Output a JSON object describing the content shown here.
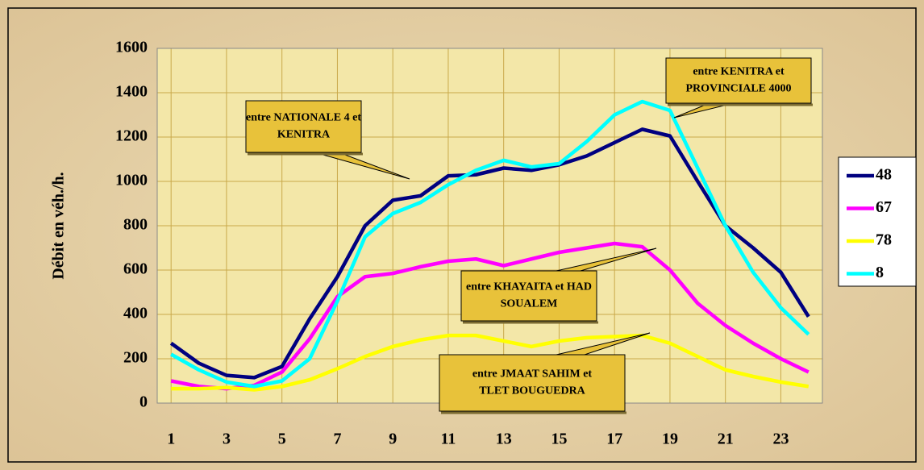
{
  "chart_data": {
    "type": "line",
    "y_label": "Débit en véh./h.",
    "x": [
      1,
      2,
      3,
      4,
      5,
      6,
      7,
      8,
      9,
      10,
      11,
      12,
      13,
      14,
      15,
      16,
      17,
      18,
      19,
      20,
      21,
      22,
      23,
      24
    ],
    "xlim": [
      0.5,
      24.5
    ],
    "xticks": [
      1,
      3,
      5,
      7,
      9,
      11,
      13,
      15,
      17,
      19,
      21,
      23
    ],
    "ylim": [
      0,
      1600
    ],
    "yticks": [
      0,
      200,
      400,
      600,
      800,
      1000,
      1200,
      1400,
      1600
    ],
    "grid": true,
    "legend": "right",
    "series": [
      {
        "name": "48",
        "color": "#000080",
        "values": [
          270,
          180,
          125,
          115,
          165,
          380,
          570,
          800,
          915,
          935,
          1025,
          1030,
          1060,
          1050,
          1075,
          1115,
          1175,
          1235,
          1205,
          1000,
          800,
          700,
          590,
          390
        ]
      },
      {
        "name": "67",
        "color": "#ff00ff",
        "values": [
          100,
          75,
          65,
          80,
          140,
          290,
          480,
          570,
          585,
          615,
          640,
          650,
          620,
          650,
          680,
          700,
          720,
          705,
          600,
          450,
          350,
          270,
          200,
          140
        ]
      },
      {
        "name": "78",
        "color": "#ffff00",
        "values": [
          65,
          65,
          70,
          60,
          75,
          105,
          155,
          210,
          255,
          285,
          305,
          305,
          280,
          255,
          280,
          295,
          300,
          305,
          270,
          210,
          150,
          120,
          95,
          75
        ]
      },
      {
        "name": "8",
        "color": "#00ffff",
        "values": [
          220,
          150,
          95,
          75,
          100,
          200,
          460,
          750,
          855,
          905,
          985,
          1050,
          1095,
          1065,
          1080,
          1180,
          1300,
          1360,
          1320,
          1060,
          800,
          590,
          430,
          310
        ]
      }
    ],
    "annotations": [
      {
        "lines": [
          "entre NATIONALE 4 et",
          "KENITRA"
        ]
      },
      {
        "lines": [
          "entre KENITRA et",
          "PROVINCIALE 4000"
        ]
      },
      {
        "lines": [
          "entre KHAYAITA et HAD",
          "SOUALEM"
        ]
      },
      {
        "lines": [
          "entre JMAAT SAHIM et",
          "TLET BOUGUEDRA"
        ]
      }
    ]
  }
}
